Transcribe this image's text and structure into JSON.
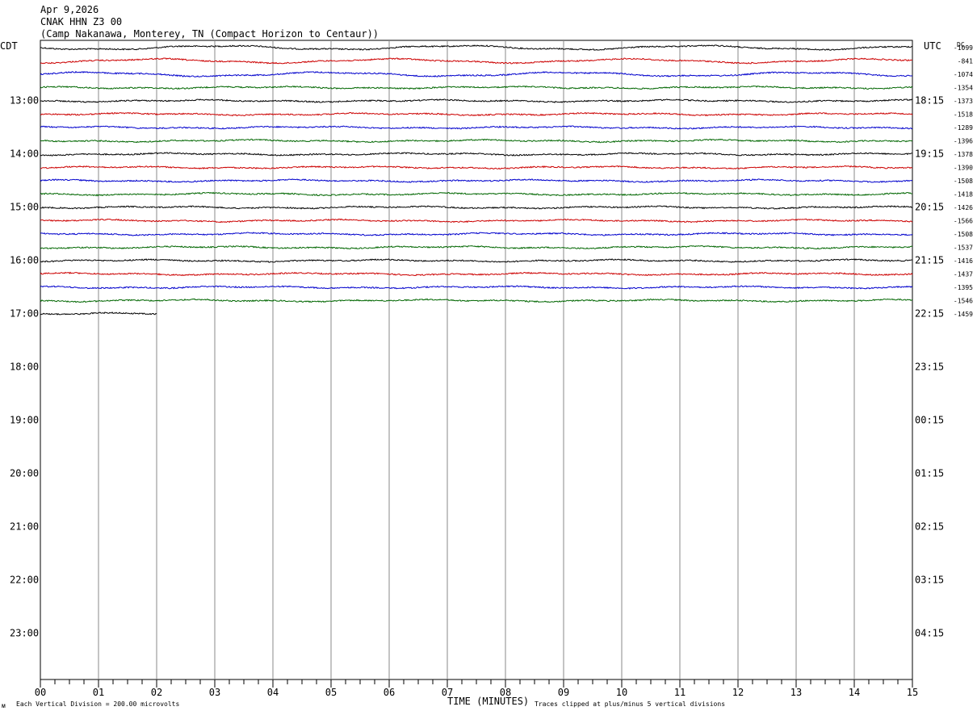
{
  "header": {
    "date": "Apr 9,2026",
    "station": "CNAK HHN Z3 00",
    "location": "(Camp Nakanawa, Monterey, TN (Compact Horizon to Centaur))"
  },
  "labels": {
    "left_tz": "CDT",
    "right_tz": "UTC",
    "dc_header": "DC"
  },
  "footer": {
    "logo_mark": "ᴍ",
    "scale_note": "Each Vertical Division =  200.00 microvolts",
    "xlabel": "TIME (MINUTES)",
    "clip_note": "Traces clipped at plus/minus 5 vertical divisions"
  },
  "chart_data": {
    "type": "line",
    "title": "CNAK HHN Z3 00",
    "xlabel": "TIME (MINUTES)",
    "xlim": [
      0,
      15
    ],
    "x_ticks": [
      "00",
      "01",
      "02",
      "03",
      "04",
      "05",
      "06",
      "07",
      "08",
      "09",
      "10",
      "11",
      "12",
      "13",
      "14",
      "15"
    ],
    "left_hour_labels": [
      "13:00",
      "14:00",
      "15:00",
      "16:00",
      "17:00",
      "18:00",
      "19:00",
      "20:00",
      "21:00",
      "22:00",
      "23:00"
    ],
    "right_hour_labels": [
      "18:15",
      "19:15",
      "20:15",
      "21:15",
      "22:15",
      "23:15",
      "00:15",
      "01:15",
      "02:15",
      "03:15",
      "04:15"
    ],
    "trace_colors": [
      "#000000",
      "#cc0000",
      "#0000cc",
      "#006600"
    ],
    "dc_offsets": [
      "-1099",
      "-841",
      "-1074",
      "-1354",
      "-1373",
      "-1518",
      "-1289",
      "-1396",
      "-1378",
      "-1390",
      "-1508",
      "-1418",
      "-1426",
      "-1566",
      "-1508",
      "-1537",
      "-1416",
      "-1437",
      "-1395",
      "-1546",
      "-1459"
    ],
    "trace_end_minutes": [
      15,
      15,
      15,
      15,
      15,
      15,
      15,
      15,
      15,
      15,
      15,
      15,
      15,
      15,
      15,
      15,
      15,
      15,
      15,
      15,
      2
    ],
    "microvolts_per_division": 200.0,
    "clip_divisions": 5
  }
}
